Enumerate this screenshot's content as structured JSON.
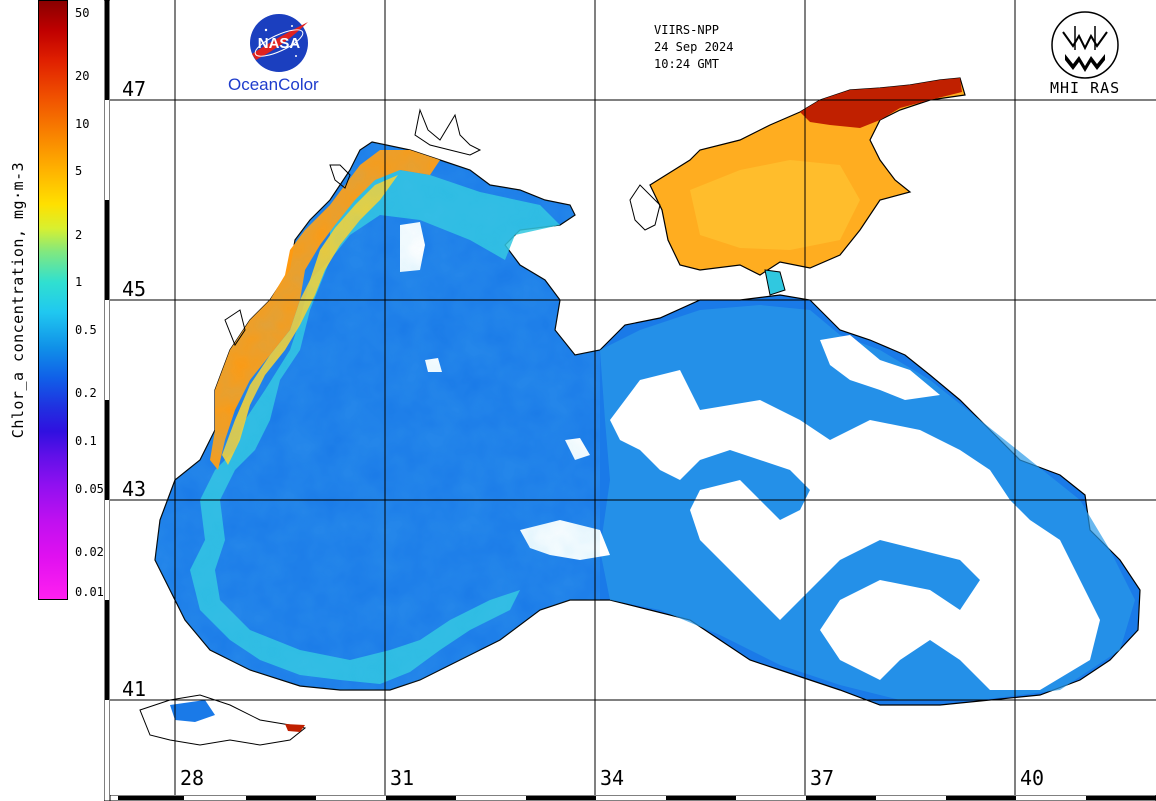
{
  "colorbar": {
    "label": "Chlor_a concentration, mg·m-3",
    "ticks": [
      {
        "label": "50",
        "value": 50
      },
      {
        "label": "20",
        "value": 20
      },
      {
        "label": "10",
        "value": 10
      },
      {
        "label": "5",
        "value": 5
      },
      {
        "label": "2",
        "value": 2
      },
      {
        "label": "1",
        "value": 1
      },
      {
        "label": "0.5",
        "value": 0.5
      },
      {
        "label": "0.2",
        "value": 0.2
      },
      {
        "label": "0.1",
        "value": 0.1
      },
      {
        "label": "0.05",
        "value": 0.05
      },
      {
        "label": "0.02",
        "value": 0.02
      },
      {
        "label": "0.01",
        "value": 0.01
      }
    ],
    "range": [
      0.01,
      60
    ],
    "scale": "log"
  },
  "header": {
    "sensor": "VIIRS-NPP",
    "date": "24 Sep 2024",
    "time": "10:24 GMT"
  },
  "logos": {
    "nasa": "NASA",
    "oceancolor": "OceanColor",
    "mhi": "MHI RAS"
  },
  "grid": {
    "latitudes": [
      "47",
      "45",
      "43",
      "41"
    ],
    "longitudes": [
      "28",
      "31",
      "34",
      "37",
      "40"
    ]
  },
  "colors": {
    "sea_low": "#1a78e8",
    "sea_mid": "#30c8e8",
    "coastal_high": "#ff9a10",
    "azov": "#ffb020",
    "cloud": "#ffffff"
  }
}
